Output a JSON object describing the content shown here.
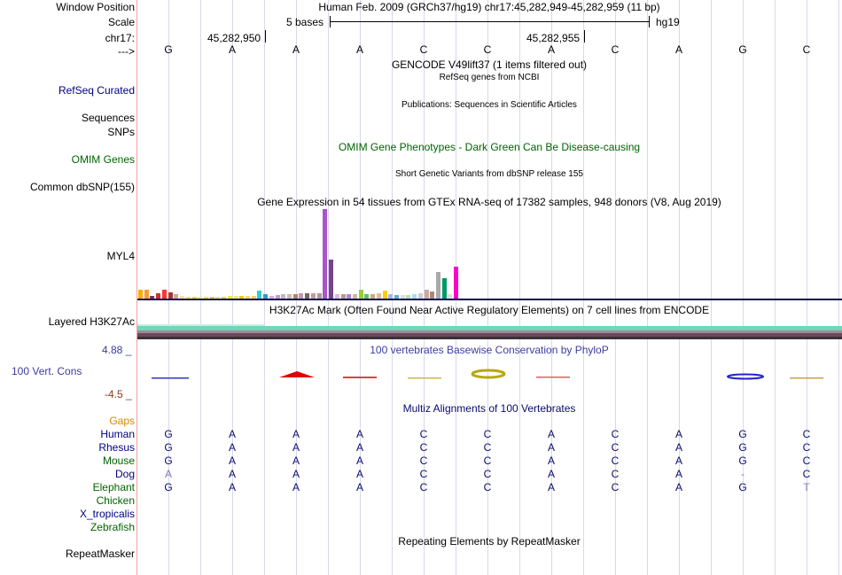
{
  "colors": {
    "label_navy": "#000080",
    "label_green": "#006400",
    "label_dark_blue": "#0a0a6e",
    "gaps_orange": "#d28a00",
    "cons_blue": "#3c3ca0",
    "cons_neg": "#8b3a1a",
    "gtex_red": "#ff0000",
    "h3k27ac_teal": "#7fe0c0",
    "h3k27ac_dark": "#5c4050"
  },
  "header": {
    "window_position_label": "Window Position",
    "scale_label": "Scale",
    "chrom_label": "chr17:",
    "strand_label": "--->",
    "position_text": "Human Feb. 2009 (GRCh37/hg19)   chr17:45,282,949-45,282,959 (11 bp)",
    "scale_text": "5 bases",
    "assembly": "hg19",
    "tick_1": "45,282,950",
    "tick_2": "45,282,955"
  },
  "sequence": [
    "G",
    "A",
    "A",
    "A",
    "C",
    "C",
    "A",
    "C",
    "A",
    "G",
    "C"
  ],
  "tracks": {
    "gencode_title": "GENCODE V49lift37 (1 items filtered out)",
    "refseq_subtitle": "RefSeq genes from NCBI",
    "refseq_label": "RefSeq Curated",
    "sequences_label": "Sequences",
    "snps_label": "SNPs",
    "publications_title": "Publications: Sequences in Scientific Articles",
    "omim_title": "OMIM Gene Phenotypes - Dark Green Can Be Disease-causing",
    "omim_label": "OMIM Genes",
    "dbsnp_title": "Short Genetic Variants from dbSNP release 155",
    "dbsnp_label": "Common dbSNP(155)",
    "gtex_title": "Gene Expression in 54 tissues from GTEx RNA-seq of 17382 samples, 948 donors (V8, Aug 2019)",
    "gtex_label": "MYL4",
    "h3k27ac_title": "H3K27Ac Mark (Often Found Near Active Regulatory Elements) on 7 cell lines from ENCODE",
    "h3k27ac_label": "Layered H3K27Ac",
    "cons_max": "4.88 _",
    "cons_min": "-4.5 _",
    "cons_title": "100 vertebrates Basewise Conservation by PhyloP",
    "cons_label": "100 Vert. Cons",
    "gaps_label": "Gaps",
    "multiz_title": "Multiz Alignments of 100 Vertebrates",
    "repeat_title": "Repeating Elements by RepeatMasker",
    "repeat_label": "RepeatMasker"
  },
  "gtex_bars": [
    {
      "color": "#ffaa00",
      "value": 0.095
    },
    {
      "color": "#ff9933",
      "value": 0.095
    },
    {
      "color": "#7a3366",
      "value": 0.025
    },
    {
      "color": "#cc3333",
      "value": 0.06
    },
    {
      "color": "#ff3333",
      "value": 0.095
    },
    {
      "color": "#aa3333",
      "value": 0.07
    },
    {
      "color": "#ccaa99",
      "value": 0.05
    },
    {
      "color": "#ffdd99",
      "value": 0.025
    },
    {
      "color": "#eeee33",
      "value": 0.02
    },
    {
      "color": "#eedd00",
      "value": 0.02
    },
    {
      "color": "#eeee55",
      "value": 0.02
    },
    {
      "color": "#eeee00",
      "value": 0.02
    },
    {
      "color": "#eecc33",
      "value": 0.02
    },
    {
      "color": "#eeee44",
      "value": 0.02
    },
    {
      "color": "#dddd33",
      "value": 0.02
    },
    {
      "color": "#eeee22",
      "value": 0.025
    },
    {
      "color": "#eeee66",
      "value": 0.025
    },
    {
      "color": "#eecc00",
      "value": 0.025
    },
    {
      "color": "#ffdd44",
      "value": 0.03
    },
    {
      "color": "#ffcc66",
      "value": 0.03
    },
    {
      "color": "#33cccc",
      "value": 0.085
    },
    {
      "color": "#3399cc",
      "value": 0.05
    },
    {
      "color": "#ddaadd",
      "value": 0.03
    },
    {
      "color": "#cc99cc",
      "value": 0.04
    },
    {
      "color": "#bbbbbb",
      "value": 0.05
    },
    {
      "color": "#ccbbaa",
      "value": 0.05
    },
    {
      "color": "#aa8866",
      "value": 0.05
    },
    {
      "color": "#bb99aa",
      "value": 0.06
    },
    {
      "color": "#776655",
      "value": 0.06
    },
    {
      "color": "#cc9999",
      "value": 0.06
    },
    {
      "color": "#aa9999",
      "value": 0.055
    },
    {
      "color": "#aa55cc",
      "value": 1.0
    },
    {
      "color": "#774488",
      "value": 0.44
    },
    {
      "color": "#ddbbcc",
      "value": 0.05
    },
    {
      "color": "#bb9988",
      "value": 0.05
    },
    {
      "color": "#aa88cc",
      "value": 0.05
    },
    {
      "color": "#ccbb99",
      "value": 0.05
    },
    {
      "color": "#99cc33",
      "value": 0.1
    },
    {
      "color": "#66bb66",
      "value": 0.05
    },
    {
      "color": "#ccaa77",
      "value": 0.05
    },
    {
      "color": "#ddbb99",
      "value": 0.06
    },
    {
      "color": "#ffcc00",
      "value": 0.09
    },
    {
      "color": "#99bbdd",
      "value": 0.05
    },
    {
      "color": "#66aacc",
      "value": 0.035
    },
    {
      "color": "#dddddd",
      "value": 0.035
    },
    {
      "color": "#bbddaa",
      "value": 0.04
    },
    {
      "color": "#aaddee",
      "value": 0.05
    },
    {
      "color": "#cccccc",
      "value": 0.06
    },
    {
      "color": "#ccaa99",
      "value": 0.1
    },
    {
      "color": "#aa8877",
      "value": 0.08
    },
    {
      "color": "#aaaaaa",
      "value": 0.3
    },
    {
      "color": "#009966",
      "value": 0.23
    },
    {
      "color": "#dddddd",
      "value": 0.05
    },
    {
      "color": "#ff00cc",
      "value": 0.36
    }
  ],
  "multiz": [
    {
      "species": "Human",
      "color": "#000080",
      "bases": [
        "G",
        "A",
        "A",
        "A",
        "C",
        "C",
        "A",
        "C",
        "A",
        "G",
        "C"
      ]
    },
    {
      "species": "Rhesus",
      "color": "#000080",
      "bases": [
        "G",
        "A",
        "A",
        "A",
        "C",
        "C",
        "A",
        "C",
        "A",
        "G",
        "C"
      ]
    },
    {
      "species": "Mouse",
      "color": "#006400",
      "bases": [
        "G",
        "A",
        "A",
        "A",
        "C",
        "C",
        "A",
        "C",
        "A",
        "G",
        "C"
      ]
    },
    {
      "species": "Dog",
      "color": "#000080",
      "bases": [
        "A",
        "A",
        "A",
        "A",
        "C",
        "C",
        "A",
        "C",
        "A",
        "-",
        "C"
      ]
    },
    {
      "species": "Elephant",
      "color": "#006400",
      "bases": [
        "G",
        "A",
        "A",
        "A",
        "C",
        "C",
        "A",
        "C",
        "A",
        "G",
        "T"
      ]
    },
    {
      "species": "Chicken",
      "color": "#006400",
      "bases": []
    },
    {
      "species": "X_tropicalis",
      "color": "#000080",
      "bases": []
    },
    {
      "species": "Zebrafish",
      "color": "#006400",
      "bases": []
    }
  ]
}
